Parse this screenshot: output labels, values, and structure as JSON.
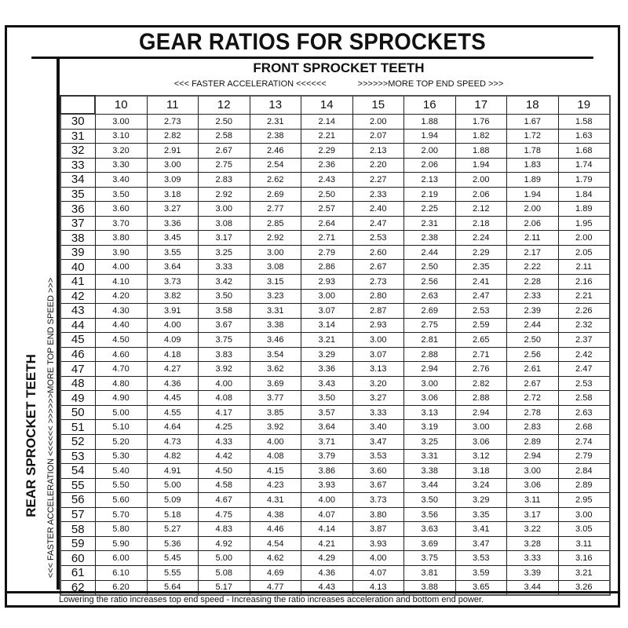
{
  "title": "GEAR RATIOS FOR SPROCKETS",
  "front": {
    "title": "FRONT SPROCKET TEETH",
    "hint_left": "<<< FASTER  ACCELERATION <<<<<<",
    "hint_right": ">>>>>>MORE TOP END SPEED >>>"
  },
  "rear": {
    "title": "REAR SPROCKET TEETH",
    "hint": "<<< FASTER  ACCELERATION <<<<<<   >>>>>>MORE TOP END SPEED >>>"
  },
  "footer": "Lowering the ratio increases top end speed - Increasing the ratio increases acceleration and bottom end power.",
  "table": {
    "front_teeth": [
      "10",
      "11",
      "12",
      "13",
      "14",
      "15",
      "16",
      "17",
      "18",
      "19"
    ],
    "rows": [
      {
        "rear": "30",
        "ratios": [
          "3.00",
          "2.73",
          "2.50",
          "2.31",
          "2.14",
          "2.00",
          "1.88",
          "1.76",
          "1.67",
          "1.58"
        ]
      },
      {
        "rear": "31",
        "ratios": [
          "3.10",
          "2.82",
          "2.58",
          "2.38",
          "2.21",
          "2.07",
          "1.94",
          "1.82",
          "1.72",
          "1.63"
        ]
      },
      {
        "rear": "32",
        "ratios": [
          "3.20",
          "2.91",
          "2.67",
          "2.46",
          "2.29",
          "2.13",
          "2.00",
          "1.88",
          "1.78",
          "1.68"
        ]
      },
      {
        "rear": "33",
        "ratios": [
          "3.30",
          "3.00",
          "2.75",
          "2.54",
          "2.36",
          "2.20",
          "2.06",
          "1.94",
          "1.83",
          "1.74"
        ]
      },
      {
        "rear": "34",
        "ratios": [
          "3.40",
          "3.09",
          "2.83",
          "2.62",
          "2.43",
          "2.27",
          "2.13",
          "2.00",
          "1.89",
          "1.79"
        ]
      },
      {
        "rear": "35",
        "ratios": [
          "3.50",
          "3.18",
          "2.92",
          "2.69",
          "2.50",
          "2.33",
          "2.19",
          "2.06",
          "1.94",
          "1.84"
        ]
      },
      {
        "rear": "36",
        "ratios": [
          "3.60",
          "3.27",
          "3.00",
          "2.77",
          "2.57",
          "2.40",
          "2.25",
          "2.12",
          "2.00",
          "1.89"
        ]
      },
      {
        "rear": "37",
        "ratios": [
          "3.70",
          "3.36",
          "3.08",
          "2.85",
          "2.64",
          "2.47",
          "2.31",
          "2.18",
          "2.06",
          "1.95"
        ]
      },
      {
        "rear": "38",
        "ratios": [
          "3.80",
          "3.45",
          "3.17",
          "2.92",
          "2.71",
          "2.53",
          "2.38",
          "2.24",
          "2.11",
          "2.00"
        ]
      },
      {
        "rear": "39",
        "ratios": [
          "3.90",
          "3.55",
          "3.25",
          "3.00",
          "2.79",
          "2.60",
          "2.44",
          "2.29",
          "2.17",
          "2.05"
        ]
      },
      {
        "rear": "40",
        "ratios": [
          "4.00",
          "3.64",
          "3.33",
          "3.08",
          "2.86",
          "2.67",
          "2.50",
          "2.35",
          "2.22",
          "2.11"
        ]
      },
      {
        "rear": "41",
        "ratios": [
          "4.10",
          "3.73",
          "3.42",
          "3.15",
          "2.93",
          "2.73",
          "2.56",
          "2.41",
          "2.28",
          "2.16"
        ]
      },
      {
        "rear": "42",
        "ratios": [
          "4.20",
          "3.82",
          "3.50",
          "3.23",
          "3.00",
          "2.80",
          "2.63",
          "2.47",
          "2.33",
          "2.21"
        ]
      },
      {
        "rear": "43",
        "ratios": [
          "4.30",
          "3.91",
          "3.58",
          "3.31",
          "3.07",
          "2.87",
          "2.69",
          "2.53",
          "2.39",
          "2.26"
        ]
      },
      {
        "rear": "44",
        "ratios": [
          "4.40",
          "4.00",
          "3.67",
          "3.38",
          "3.14",
          "2.93",
          "2.75",
          "2.59",
          "2.44",
          "2.32"
        ]
      },
      {
        "rear": "45",
        "ratios": [
          "4.50",
          "4.09",
          "3.75",
          "3.46",
          "3.21",
          "3.00",
          "2.81",
          "2.65",
          "2.50",
          "2.37"
        ]
      },
      {
        "rear": "46",
        "ratios": [
          "4.60",
          "4.18",
          "3.83",
          "3.54",
          "3.29",
          "3.07",
          "2.88",
          "2.71",
          "2.56",
          "2.42"
        ]
      },
      {
        "rear": "47",
        "ratios": [
          "4.70",
          "4.27",
          "3.92",
          "3.62",
          "3.36",
          "3.13",
          "2.94",
          "2.76",
          "2.61",
          "2.47"
        ]
      },
      {
        "rear": "48",
        "ratios": [
          "4.80",
          "4.36",
          "4.00",
          "3.69",
          "3.43",
          "3.20",
          "3.00",
          "2.82",
          "2.67",
          "2.53"
        ]
      },
      {
        "rear": "49",
        "ratios": [
          "4.90",
          "4.45",
          "4.08",
          "3.77",
          "3.50",
          "3.27",
          "3.06",
          "2.88",
          "2.72",
          "2.58"
        ]
      },
      {
        "rear": "50",
        "ratios": [
          "5.00",
          "4.55",
          "4.17",
          "3.85",
          "3.57",
          "3.33",
          "3.13",
          "2.94",
          "2.78",
          "2.63"
        ]
      },
      {
        "rear": "51",
        "ratios": [
          "5.10",
          "4.64",
          "4.25",
          "3.92",
          "3.64",
          "3.40",
          "3.19",
          "3.00",
          "2.83",
          "2.68"
        ]
      },
      {
        "rear": "52",
        "ratios": [
          "5.20",
          "4.73",
          "4.33",
          "4.00",
          "3.71",
          "3.47",
          "3.25",
          "3.06",
          "2.89",
          "2.74"
        ]
      },
      {
        "rear": "53",
        "ratios": [
          "5.30",
          "4.82",
          "4.42",
          "4.08",
          "3.79",
          "3.53",
          "3.31",
          "3.12",
          "2.94",
          "2.79"
        ]
      },
      {
        "rear": "54",
        "ratios": [
          "5.40",
          "4.91",
          "4.50",
          "4.15",
          "3.86",
          "3.60",
          "3.38",
          "3.18",
          "3.00",
          "2.84"
        ]
      },
      {
        "rear": "55",
        "ratios": [
          "5.50",
          "5.00",
          "4.58",
          "4.23",
          "3.93",
          "3.67",
          "3.44",
          "3.24",
          "3.06",
          "2.89"
        ]
      },
      {
        "rear": "56",
        "ratios": [
          "5.60",
          "5.09",
          "4.67",
          "4.31",
          "4.00",
          "3.73",
          "3.50",
          "3.29",
          "3.11",
          "2.95"
        ]
      },
      {
        "rear": "57",
        "ratios": [
          "5.70",
          "5.18",
          "4.75",
          "4.38",
          "4.07",
          "3.80",
          "3.56",
          "3.35",
          "3.17",
          "3.00"
        ]
      },
      {
        "rear": "58",
        "ratios": [
          "5.80",
          "5.27",
          "4.83",
          "4.46",
          "4.14",
          "3.87",
          "3.63",
          "3.41",
          "3.22",
          "3.05"
        ]
      },
      {
        "rear": "59",
        "ratios": [
          "5.90",
          "5.36",
          "4.92",
          "4.54",
          "4.21",
          "3.93",
          "3.69",
          "3.47",
          "3.28",
          "3.11"
        ]
      },
      {
        "rear": "60",
        "ratios": [
          "6.00",
          "5.45",
          "5.00",
          "4.62",
          "4.29",
          "4.00",
          "3.75",
          "3.53",
          "3.33",
          "3.16"
        ]
      },
      {
        "rear": "61",
        "ratios": [
          "6.10",
          "5.55",
          "5.08",
          "4.69",
          "4.36",
          "4.07",
          "3.81",
          "3.59",
          "3.39",
          "3.21"
        ]
      },
      {
        "rear": "62",
        "ratios": [
          "6.20",
          "5.64",
          "5.17",
          "4.77",
          "4.43",
          "4.13",
          "3.88",
          "3.65",
          "3.44",
          "3.26"
        ]
      }
    ]
  }
}
